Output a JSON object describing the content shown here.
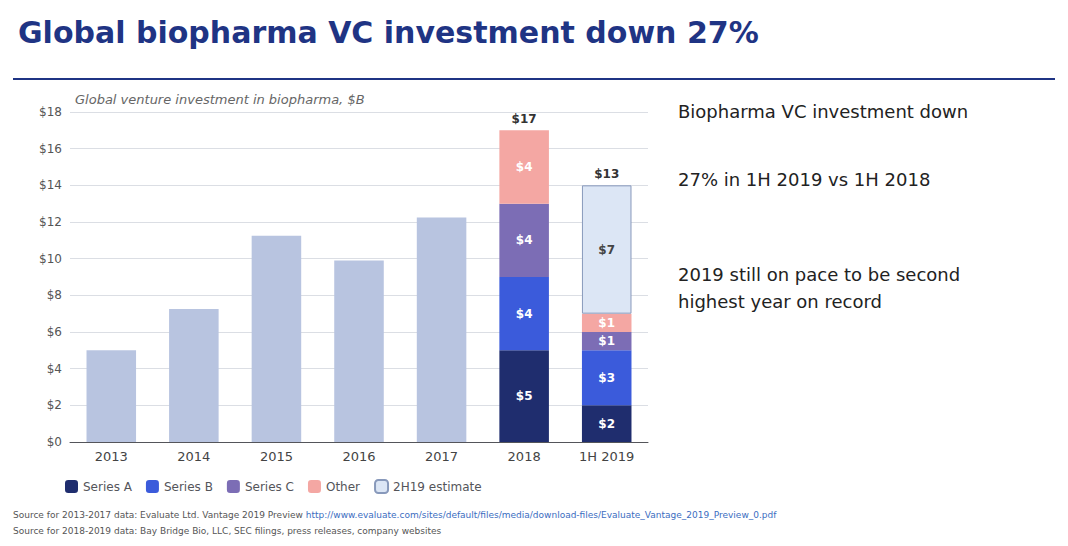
{
  "chart_data": {
    "type": "bar",
    "title": "Global biopharma VC investment down 27%",
    "subtitle": "Global venture investment in biopharma, $B",
    "categories": [
      "2013",
      "2014",
      "2015",
      "2016",
      "2017",
      "2018",
      "1H 2019"
    ],
    "stacked": true,
    "data_labels": true,
    "grid": true,
    "legend": "bottom",
    "series": [
      {
        "color": "#b8c4e0",
        "values": [
          5,
          7.25,
          11.25,
          9.9,
          12.25,
          null,
          null
        ]
      },
      {
        "name": "Series A",
        "color": "#1f2d6e",
        "values": [
          null,
          null,
          null,
          null,
          null,
          5,
          2
        ],
        "value_labels": [
          null,
          null,
          null,
          null,
          null,
          "$5",
          "$2"
        ]
      },
      {
        "name": "Series B",
        "color": "#3b5bdb",
        "values": [
          null,
          null,
          null,
          null,
          null,
          4,
          3
        ],
        "value_labels": [
          null,
          null,
          null,
          null,
          null,
          "$4",
          "$3"
        ]
      },
      {
        "name": "Series C",
        "color": "#7c6db5",
        "values": [
          null,
          null,
          null,
          null,
          null,
          4,
          1
        ],
        "value_labels": [
          null,
          null,
          null,
          null,
          null,
          "$4",
          "$1"
        ]
      },
      {
        "name": "Other",
        "color": "#f4a7a3",
        "values": [
          null,
          null,
          null,
          null,
          null,
          4,
          1
        ],
        "value_labels": [
          null,
          null,
          null,
          null,
          null,
          "$4",
          "$1"
        ]
      },
      {
        "name": "2H19 estimate",
        "color": "#dce6f5",
        "values": [
          null,
          null,
          null,
          null,
          null,
          null,
          7
        ],
        "value_labels": [
          null,
          null,
          null,
          null,
          null,
          null,
          "$7"
        ]
      }
    ],
    "total_labels": [
      null,
      null,
      null,
      null,
      null,
      "$17",
      "$13"
    ],
    "ylim": [
      0,
      18
    ],
    "yticks": [
      {
        "value": 0,
        "label": "$0"
      },
      {
        "value": 2,
        "label": "$2"
      },
      {
        "value": 4,
        "label": "$4"
      },
      {
        "value": 6,
        "label": "$6"
      },
      {
        "value": 8,
        "label": "$8"
      },
      {
        "value": 10,
        "label": "$10"
      },
      {
        "value": 12,
        "label": "$12"
      },
      {
        "value": 14,
        "label": "$14"
      },
      {
        "value": 16,
        "label": "$16"
      },
      {
        "value": 18,
        "label": "$18"
      }
    ],
    "annotations": [
      "Biopharma VC investment down",
      "27% in 1H 2019 vs 1H 2018",
      "2019 still on pace to be second\nhighest year on record"
    ],
    "source": [
      "Source for 2013-2017 data: Evaluate Ltd. Vantage 2019 Preview ",
      "http://www.evaluate.com/sites/default/files/media/download-files/Evaluate_Vantage_2019_Preview_0.pdf",
      "Source for 2018-2019 data: Bay Bridge Bio, LLC, SEC filings, press releases, company websites"
    ]
  }
}
